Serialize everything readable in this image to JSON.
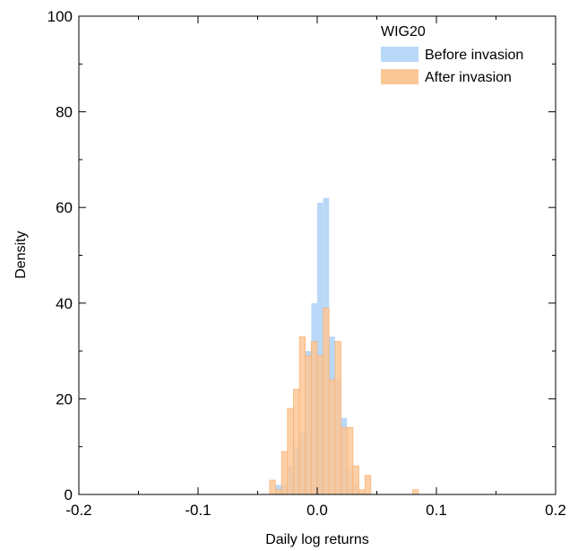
{
  "chart_data": {
    "type": "bar",
    "title": "",
    "xlabel": "Daily log returns",
    "ylabel": "Density",
    "xlim": [
      -0.2,
      0.2
    ],
    "ylim": [
      0,
      100
    ],
    "x_ticks": [
      -0.2,
      -0.1,
      0.0,
      0.1,
      0.2
    ],
    "x_tick_labels": [
      "-0.2",
      "-0.1",
      "0.0",
      "0.1",
      "0.2"
    ],
    "y_ticks": [
      0,
      20,
      40,
      60,
      80,
      100
    ],
    "y_tick_labels": [
      "0",
      "20",
      "40",
      "60",
      "80",
      "100"
    ],
    "bin_width": 0.005,
    "grid": false,
    "legend": {
      "title": "WIG20",
      "position": "top-right"
    },
    "series": [
      {
        "name": "Before invasion",
        "color": "#b9d8f7",
        "bins": [
          [
            -0.035,
            2
          ],
          [
            -0.03,
            2
          ],
          [
            -0.025,
            6
          ],
          [
            -0.02,
            10
          ],
          [
            -0.015,
            13
          ],
          [
            -0.01,
            30
          ],
          [
            -0.005,
            40
          ],
          [
            0.0,
            61
          ],
          [
            0.005,
            62
          ],
          [
            0.01,
            33
          ],
          [
            0.015,
            24
          ],
          [
            0.02,
            16
          ],
          [
            0.025,
            5
          ],
          [
            0.03,
            2
          ]
        ]
      },
      {
        "name": "After invasion",
        "color": "#fbc796",
        "bins": [
          [
            -0.04,
            3
          ],
          [
            -0.035,
            1
          ],
          [
            -0.03,
            9
          ],
          [
            -0.025,
            18
          ],
          [
            -0.02,
            22
          ],
          [
            -0.015,
            33
          ],
          [
            -0.01,
            29
          ],
          [
            -0.005,
            32
          ],
          [
            0.0,
            29
          ],
          [
            0.005,
            39
          ],
          [
            0.01,
            24
          ],
          [
            0.015,
            32
          ],
          [
            0.02,
            14
          ],
          [
            0.025,
            14
          ],
          [
            0.03,
            6
          ],
          [
            0.035,
            1
          ],
          [
            0.04,
            4
          ],
          [
            0.08,
            1
          ]
        ]
      }
    ]
  }
}
